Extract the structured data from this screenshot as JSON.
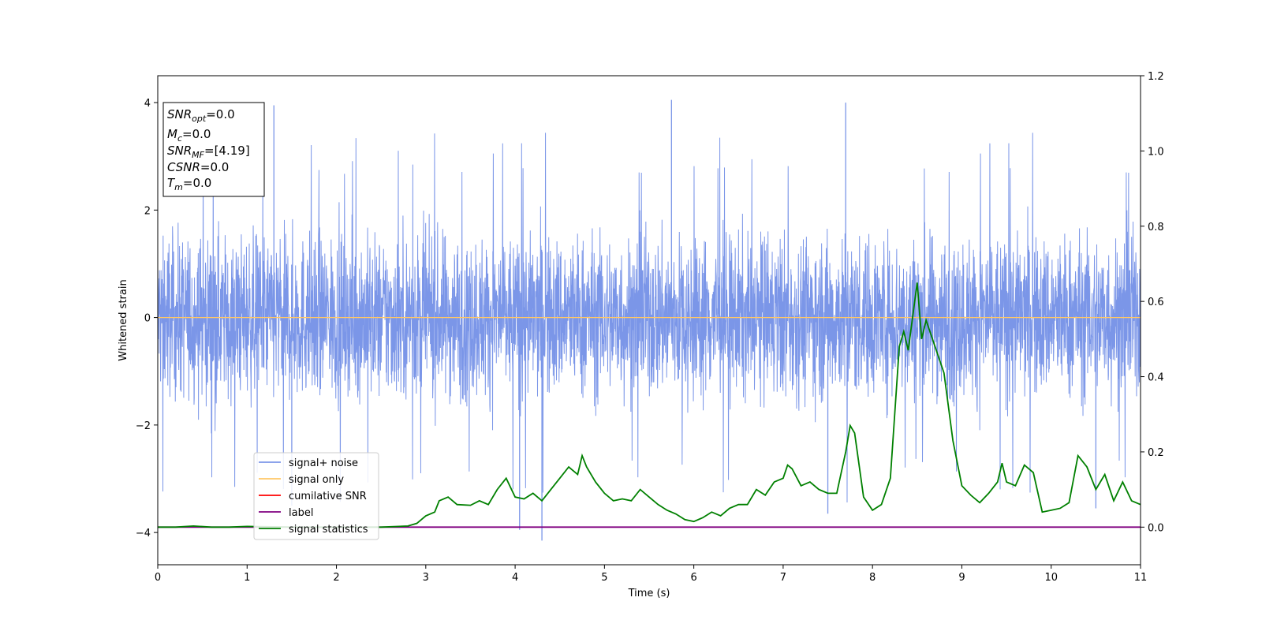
{
  "chart_data": {
    "type": "line",
    "xlabel": "Time (s)",
    "ylabel": "Whitened strain",
    "xlim": [
      0,
      11
    ],
    "ylim_left": [
      -4.6,
      4.5
    ],
    "ylim_right": [
      -0.1,
      1.2
    ],
    "xticks": [
      "0",
      "1",
      "2",
      "3",
      "4",
      "5",
      "6",
      "7",
      "8",
      "9",
      "10",
      "11"
    ],
    "yticks_left": [
      "4",
      "2",
      "0",
      "−2",
      "−4"
    ],
    "yticks_right": [
      "1.2",
      "1.0",
      "0.8",
      "0.6",
      "0.4",
      "0.2",
      "0.0"
    ],
    "legend_position": "lower-left",
    "colors": {
      "signal_noise": "#7b96e8",
      "signal_only": "#ffc766",
      "cumulative_snr": "#ff0000",
      "label": "#800080",
      "signal_statistics": "#008000"
    },
    "info_box": {
      "snr_opt": {
        "main": "SNR",
        "sub": "opt",
        "value": "=0.0"
      },
      "mc": {
        "main": "M",
        "sub": "c",
        "value": "=0.0"
      },
      "snr_mf": {
        "main": "SNR",
        "sub": "MF",
        "value": "=[4.19]"
      },
      "csnr": {
        "main": "CSNR",
        "value": "=0.0"
      },
      "tm": {
        "main": "T",
        "sub": "m",
        "value": "=0.0"
      }
    },
    "series": [
      {
        "name": "signal+ noise",
        "description": "Whitened noisy strain, approx. ±2.5 envelope with spikes up to about ±4",
        "noise_envelope": [
          -2.5,
          2.5
        ],
        "peaks": [
          [
            1.3,
            3.95
          ],
          [
            5.75,
            4.05
          ],
          [
            7.7,
            4.0
          ],
          [
            4.3,
            -4.15
          ],
          [
            4.05,
            -3.95
          ],
          [
            7.5,
            -3.65
          ],
          [
            1.5,
            -3.5
          ],
          [
            10.5,
            -3.55
          ]
        ]
      },
      {
        "name": "signal only",
        "values_constant": 0.0
      },
      {
        "name": "cumilative SNR",
        "values_constant": 0.0
      },
      {
        "name": "label",
        "axis": "right",
        "values_constant": 0.0
      },
      {
        "name": "signal statistics",
        "axis": "right",
        "x": [
          0,
          0.2,
          0.4,
          0.6,
          0.8,
          1.0,
          1.5,
          2.0,
          2.5,
          2.8,
          2.9,
          3.0,
          3.1,
          3.15,
          3.25,
          3.35,
          3.5,
          3.6,
          3.7,
          3.8,
          3.9,
          4.0,
          4.1,
          4.2,
          4.3,
          4.4,
          4.5,
          4.6,
          4.7,
          4.75,
          4.8,
          4.9,
          5.0,
          5.1,
          5.2,
          5.3,
          5.4,
          5.5,
          5.6,
          5.7,
          5.8,
          5.9,
          6.0,
          6.1,
          6.2,
          6.3,
          6.4,
          6.5,
          6.6,
          6.7,
          6.8,
          6.9,
          7.0,
          7.05,
          7.1,
          7.2,
          7.3,
          7.4,
          7.5,
          7.6,
          7.7,
          7.75,
          7.8,
          7.9,
          8.0,
          8.1,
          8.2,
          8.3,
          8.35,
          8.4,
          8.45,
          8.5,
          8.55,
          8.6,
          8.7,
          8.8,
          8.9,
          9.0,
          9.1,
          9.2,
          9.3,
          9.4,
          9.45,
          9.5,
          9.6,
          9.7,
          9.8,
          9.9,
          10.0,
          10.1,
          10.2,
          10.3,
          10.4,
          10.5,
          10.6,
          10.7,
          10.8,
          10.9,
          11.0
        ],
        "values": [
          0.0,
          0.0,
          0.003,
          0.0,
          0.0,
          0.002,
          0.0,
          0.0,
          0.0,
          0.003,
          0.01,
          0.03,
          0.04,
          0.07,
          0.08,
          0.06,
          0.058,
          0.07,
          0.06,
          0.1,
          0.13,
          0.08,
          0.075,
          0.09,
          0.07,
          0.1,
          0.13,
          0.16,
          0.14,
          0.19,
          0.16,
          0.12,
          0.09,
          0.07,
          0.075,
          0.07,
          0.1,
          0.08,
          0.06,
          0.045,
          0.035,
          0.02,
          0.015,
          0.025,
          0.04,
          0.03,
          0.05,
          0.06,
          0.06,
          0.1,
          0.085,
          0.12,
          0.13,
          0.165,
          0.155,
          0.11,
          0.12,
          0.1,
          0.09,
          0.09,
          0.2,
          0.27,
          0.25,
          0.08,
          0.045,
          0.06,
          0.13,
          0.48,
          0.52,
          0.47,
          0.56,
          0.65,
          0.5,
          0.55,
          0.48,
          0.41,
          0.23,
          0.11,
          0.085,
          0.065,
          0.09,
          0.12,
          0.17,
          0.12,
          0.11,
          0.165,
          0.145,
          0.04,
          0.045,
          0.05,
          0.065,
          0.19,
          0.16,
          0.1,
          0.14,
          0.07,
          0.12,
          0.07,
          0.06
        ]
      }
    ]
  }
}
